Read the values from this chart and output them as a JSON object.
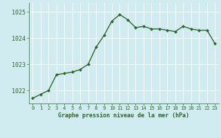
{
  "x": [
    0,
    1,
    2,
    3,
    4,
    5,
    6,
    7,
    8,
    9,
    10,
    11,
    12,
    13,
    14,
    15,
    16,
    17,
    18,
    19,
    20,
    21,
    22,
    23
  ],
  "y": [
    1021.7,
    1021.85,
    1022.0,
    1022.6,
    1022.65,
    1022.7,
    1022.8,
    1023.0,
    1023.65,
    1024.1,
    1024.65,
    1024.9,
    1024.7,
    1024.4,
    1024.45,
    1024.35,
    1024.35,
    1024.3,
    1024.25,
    1024.45,
    1024.35,
    1024.3,
    1024.3,
    1023.8
  ],
  "line_color": "#2d6627",
  "marker_color": "#2d6627",
  "bg_color": "#d0ecf0",
  "grid_color": "#ffffff",
  "tick_label_color": "#2d6627",
  "xlabel": "Graphe pression niveau de la mer (hPa)",
  "xlabel_color": "#2d6627",
  "ylim_min": 1021.5,
  "ylim_max": 1025.35,
  "yticks": [
    1022,
    1023,
    1024,
    1025
  ],
  "xticks": [
    0,
    1,
    2,
    3,
    4,
    5,
    6,
    7,
    8,
    9,
    10,
    11,
    12,
    13,
    14,
    15,
    16,
    17,
    18,
    19,
    20,
    21,
    22,
    23
  ],
  "xtick_labels": [
    "0",
    "1",
    "2",
    "3",
    "4",
    "5",
    "6",
    "7",
    "8",
    "9",
    "10",
    "11",
    "12",
    "13",
    "14",
    "15",
    "16",
    "17",
    "18",
    "19",
    "20",
    "21",
    "22",
    "23"
  ]
}
